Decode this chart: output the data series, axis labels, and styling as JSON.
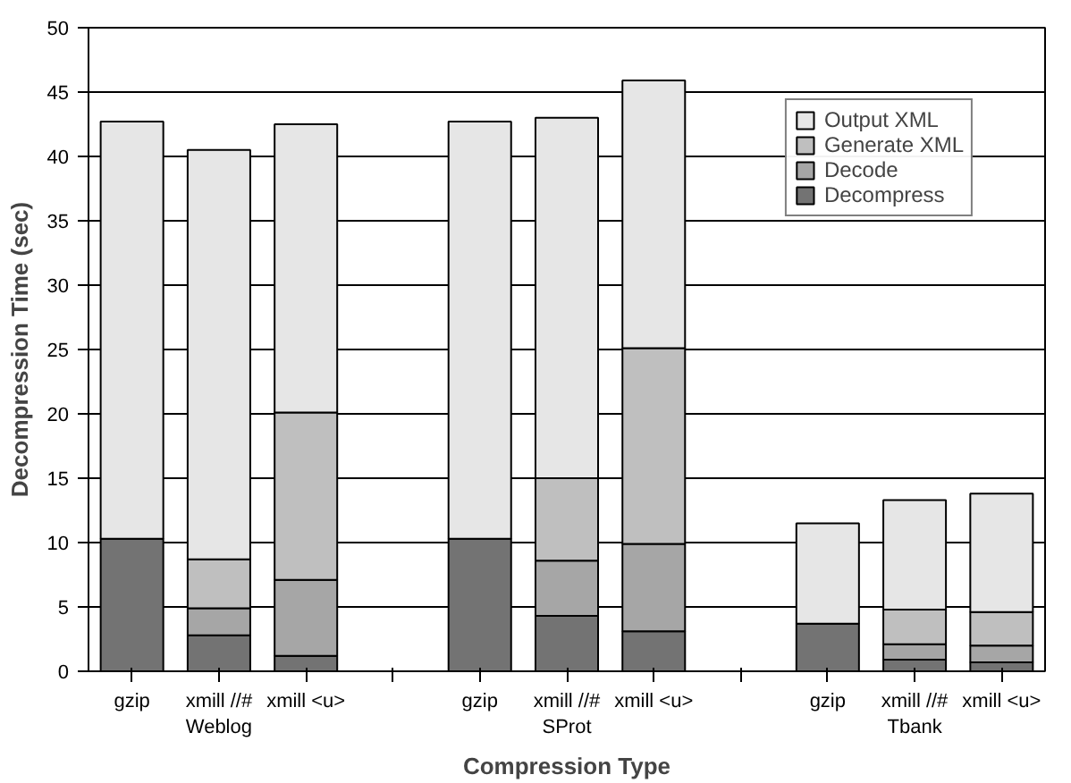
{
  "chart_data": {
    "type": "bar",
    "stacked": true,
    "xlabel": "Compression Type",
    "ylabel": "Decompression Time (sec)",
    "categories": [
      "gzip",
      "xmill //#\nWeblog",
      "xmill <u>",
      null,
      "gzip",
      "xmill //#\nSProt",
      "xmill <u>",
      null,
      "gzip",
      "xmill //#\nTbank",
      "xmill <u>"
    ],
    "series": [
      {
        "name": "Decompress",
        "color": "#737373",
        "values": [
          10.3,
          2.8,
          1.2,
          null,
          10.3,
          4.3,
          3.1,
          null,
          3.7,
          0.9,
          0.7
        ]
      },
      {
        "name": "Decode",
        "color": "#a6a6a6",
        "values": [
          null,
          2.1,
          5.9,
          null,
          null,
          4.3,
          6.8,
          null,
          null,
          1.2,
          1.3
        ]
      },
      {
        "name": "Generate XML",
        "color": "#bfbfbf",
        "values": [
          null,
          3.8,
          13.0,
          null,
          null,
          6.4,
          15.2,
          null,
          null,
          2.7,
          2.6
        ]
      },
      {
        "name": "Output XML",
        "color": "#e6e6e6",
        "values": [
          32.4,
          31.8,
          22.4,
          null,
          32.4,
          28.0,
          20.8,
          null,
          7.8,
          8.5,
          9.2
        ]
      }
    ],
    "ylim": [
      0,
      50
    ],
    "yticks": [
      0,
      5,
      10,
      15,
      20,
      25,
      30,
      35,
      40,
      45,
      50
    ],
    "grid": "y",
    "legend": "top right"
  }
}
